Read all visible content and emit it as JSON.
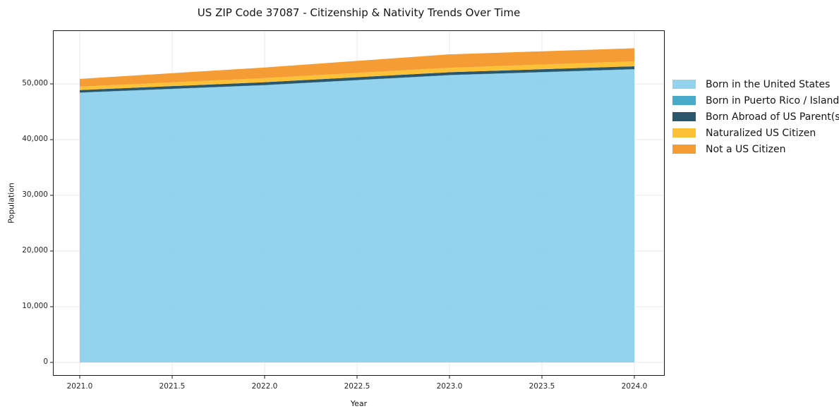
{
  "chart_data": {
    "type": "area",
    "stacked": true,
    "title": "US ZIP Code 37087 - Citizenship & Nativity Trends Over Time",
    "xlabel": "Year",
    "ylabel": "Population",
    "x": [
      2021,
      2022,
      2023,
      2024
    ],
    "series": [
      {
        "name": "Born in the United States",
        "color": "#87CEEB",
        "values": [
          48400,
          49750,
          51550,
          52600
        ]
      },
      {
        "name": "Born in Puerto Rico / Islands",
        "color": "#35A2C3",
        "values": [
          50,
          50,
          50,
          60
        ]
      },
      {
        "name": "Born Abroad of US Parent(s)",
        "color": "#14455C",
        "values": [
          450,
          500,
          500,
          500
        ]
      },
      {
        "name": "Naturalized US Citizen",
        "color": "#FDBA21",
        "values": [
          600,
          750,
          800,
          900
        ]
      },
      {
        "name": "Not a US Citizen",
        "color": "#F5911E",
        "values": [
          1400,
          1900,
          2400,
          2350
        ]
      }
    ],
    "totals": [
      50900,
      52950,
      55300,
      56410
    ],
    "xticks": [
      2021.0,
      2021.5,
      2022.0,
      2022.5,
      2023.0,
      2023.5,
      2024.0
    ],
    "xtick_labels": [
      "2021.0",
      "2021.5",
      "2022.0",
      "2022.5",
      "2023.0",
      "2023.5",
      "2024.0"
    ],
    "yticks": [
      0,
      10000,
      20000,
      30000,
      40000,
      50000
    ],
    "ytick_labels": [
      "0",
      "10,000",
      "20,000",
      "30,000",
      "40,000",
      "50,000"
    ],
    "xlim": [
      2020.86,
      2024.16
    ],
    "ylim": [
      -2400,
      59600
    ],
    "grid": true,
    "grid_color": "#e8e8e8",
    "spine_color": "#1a1a1a",
    "fill_opacity": 0.9,
    "legend_position": "right-outside"
  }
}
